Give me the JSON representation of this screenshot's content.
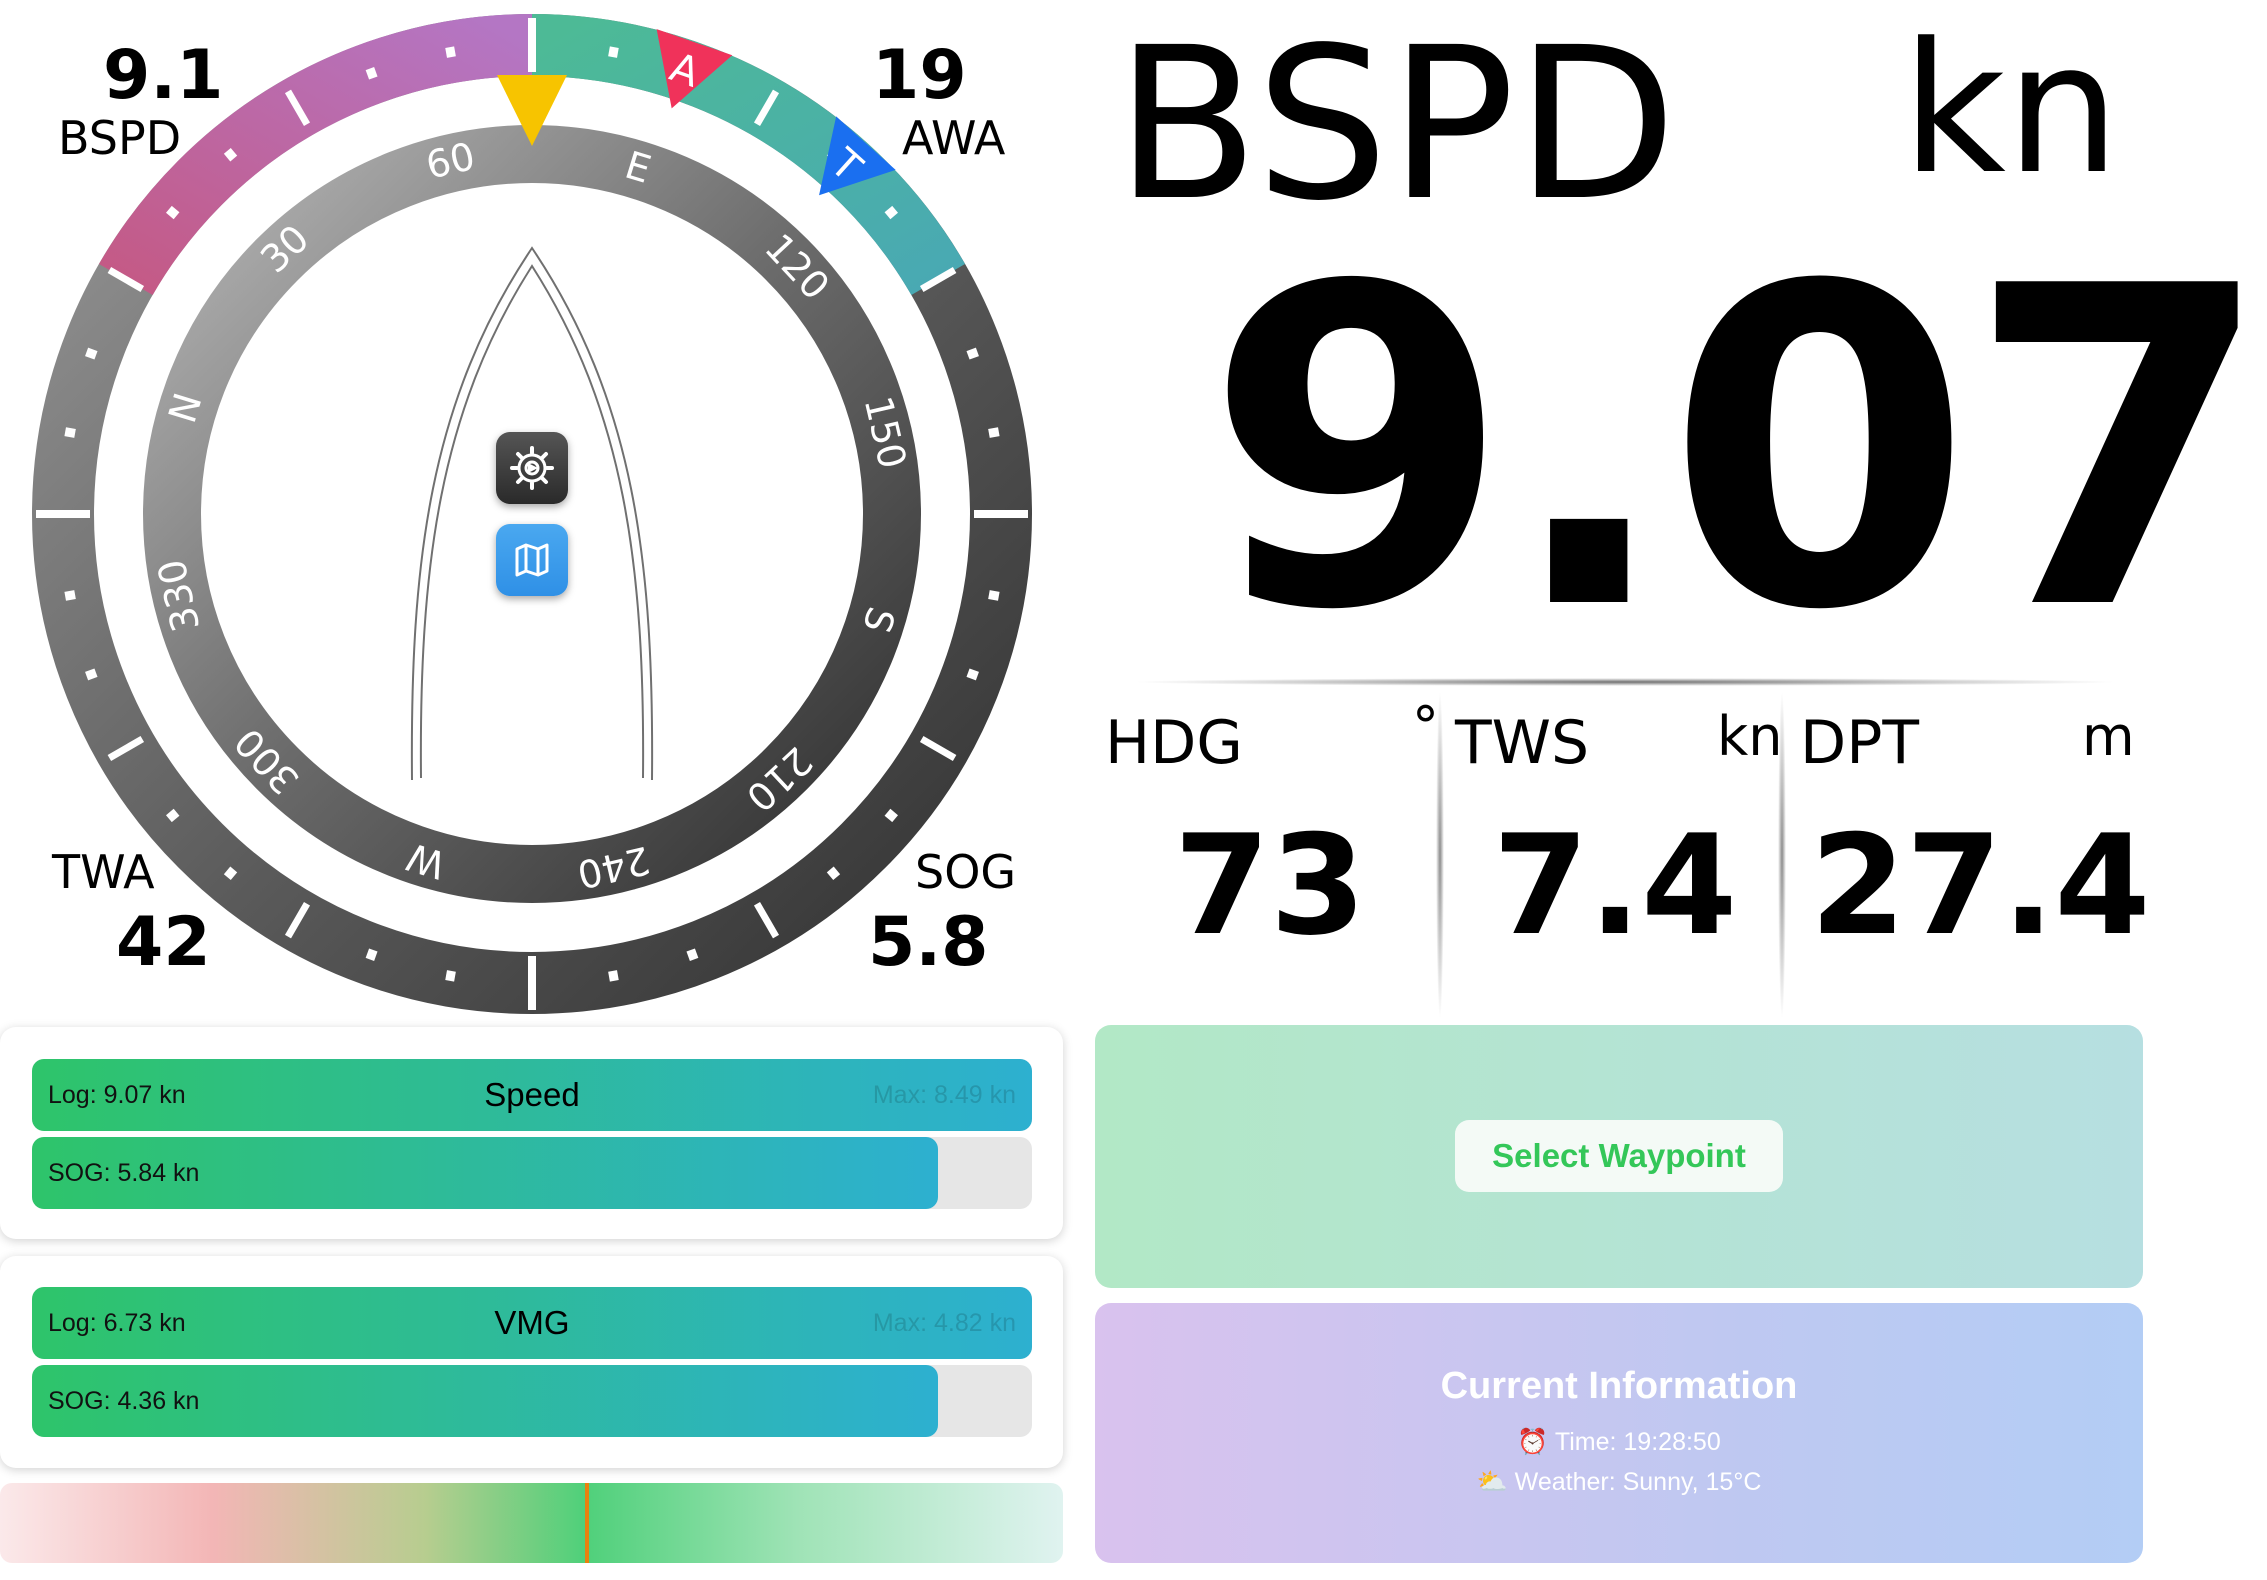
{
  "gauge": {
    "bspd": {
      "label": "BSPD",
      "value": "9.1"
    },
    "awa": {
      "label": "AWA",
      "value": "19"
    },
    "twa": {
      "label": "TWA",
      "value": "42"
    },
    "sog": {
      "label": "SOG",
      "value": "5.8"
    },
    "apparent_marker": "A",
    "true_marker": "T",
    "compass_labels": [
      "60",
      "E",
      "120",
      "150",
      "S",
      "210",
      "240",
      "W",
      "300",
      "330",
      "N",
      "30"
    ],
    "colors": {
      "port": "#c25e8e",
      "starboard": "#4bb39e",
      "apparent": "#f0325a",
      "true": "#1a6ff0",
      "heading": "#f7c400"
    }
  },
  "buttons": {
    "settings_icon": "gear-icon",
    "map_icon": "map-icon"
  },
  "main": {
    "title": "BSPD",
    "unit": "kn",
    "value": "9.07"
  },
  "metrics": [
    {
      "label": "HDG",
      "unit": "°",
      "value": "73"
    },
    {
      "label": "TWS",
      "unit": "kn",
      "value": "7.4"
    },
    {
      "label": "DPT",
      "unit": "m",
      "value": "27.4"
    }
  ],
  "speed_card": {
    "title": "Speed",
    "log": "Log: 9.07 kn",
    "max": "Max: 8.49 kn",
    "sog": "SOG: 5.84 kn",
    "log_fraction": 1.0,
    "sog_fraction": 0.906
  },
  "vmg_card": {
    "title": "VMG",
    "log": "Log: 6.73 kn",
    "max": "Max: 4.82 kn",
    "sog": "SOG: 4.36 kn",
    "log_fraction": 1.0,
    "sog_fraction": 0.906
  },
  "heel": {
    "position": 0.55
  },
  "waypoint": {
    "button": "Select Waypoint"
  },
  "info": {
    "title": "Current Information",
    "time": "⏰ Time: 19:28:50",
    "weather": "⛅ Weather: Sunny, 15°C"
  }
}
